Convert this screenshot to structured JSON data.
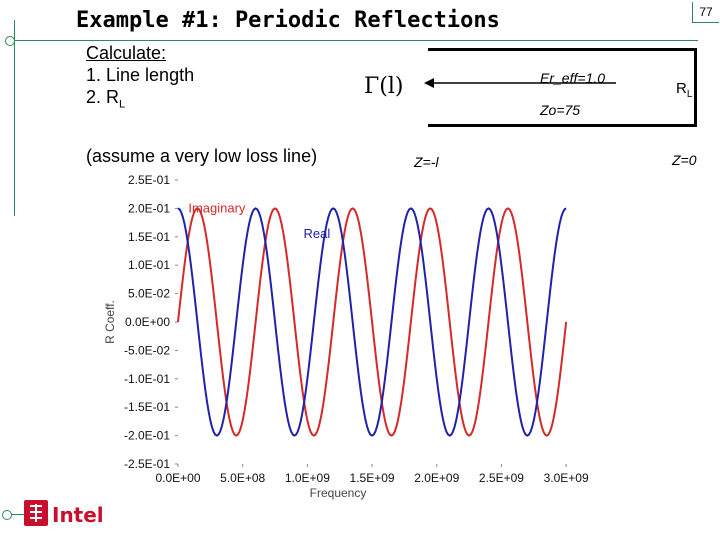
{
  "slide": {
    "title": "Example #1: Periodic Reflections",
    "number": "77",
    "calculate": {
      "heading": "Calculate:",
      "items": [
        "1.  Line length",
        "2.  R"
      ],
      "item2_sub": "L"
    },
    "assume": "(assume a very low loss line)",
    "gamma_label": "Γ(l)",
    "er_label": "Er_eff=1.0",
    "zo_label": "Zo=75",
    "z_left": "Z=-l",
    "z_right": "Z=0",
    "rl_label": "R",
    "rl_sub": "L",
    "logo_text": "Intel"
  },
  "colors": {
    "imaginary": "#d42a2a",
    "real": "#2222a8",
    "accent": "#2b8a5a",
    "logo": "#c8102e"
  },
  "chart_data": {
    "type": "line",
    "xlabel": "Frequency",
    "ylabel": "R Coeff.",
    "xlim": [
      0,
      3200000000
    ],
    "ylim": [
      -0.25,
      0.25
    ],
    "x_ticks": [
      "0.0E+00",
      "5.0E+08",
      "1.0E+09",
      "1.5E+09",
      "2.0E+09",
      "2.5E+09",
      "3.0E+09"
    ],
    "x_tick_values": [
      0,
      500000000,
      1000000000,
      1500000000,
      2000000000,
      2500000000,
      3000000000
    ],
    "y_ticks": [
      "2.5E-01",
      "2.0E-01",
      "1.5E-01",
      "1.0E-01",
      "5.0E-02",
      "0.0E+00",
      "-5.0E-02",
      "-1.0E-01",
      "-1.5E-01",
      "-2.0E-01",
      "-2.5E-01"
    ],
    "y_tick_values": [
      0.25,
      0.2,
      0.15,
      0.1,
      0.05,
      0,
      -0.05,
      -0.1,
      -0.15,
      -0.2,
      -0.25
    ],
    "annotations": [
      {
        "text": "Imaginary",
        "x": 80000000,
        "y": 0.2
      },
      {
        "text": "Real",
        "x": 970000000,
        "y": 0.155
      }
    ],
    "series": [
      {
        "name": "Imaginary",
        "x": [
          0,
          150000000,
          300000000,
          450000000,
          600000000,
          750000000,
          900000000,
          1050000000,
          1200000000,
          1350000000,
          1500000000,
          1650000000,
          1800000000,
          1950000000,
          2100000000,
          2250000000,
          2400000000,
          2550000000,
          2700000000,
          2850000000,
          3000000000
        ],
        "values": [
          0.0,
          0.2,
          0.0,
          -0.2,
          0.0,
          0.2,
          0.0,
          -0.2,
          0.0,
          0.2,
          0.0,
          -0.2,
          0.0,
          0.2,
          0.0,
          -0.2,
          0.0,
          0.2,
          0.0,
          -0.2,
          0.0
        ]
      },
      {
        "name": "Real",
        "x": [
          0,
          150000000,
          300000000,
          450000000,
          600000000,
          750000000,
          900000000,
          1050000000,
          1200000000,
          1350000000,
          1500000000,
          1650000000,
          1800000000,
          1950000000,
          2100000000,
          2250000000,
          2400000000,
          2550000000,
          2700000000,
          2850000000,
          3000000000
        ],
        "values": [
          0.2,
          0.0,
          -0.2,
          0.0,
          0.2,
          0.0,
          -0.2,
          0.0,
          0.2,
          0.0,
          -0.2,
          0.0,
          0.2,
          0.0,
          -0.2,
          0.0,
          0.2,
          0.0,
          -0.2,
          0.0,
          0.2
        ]
      }
    ]
  }
}
